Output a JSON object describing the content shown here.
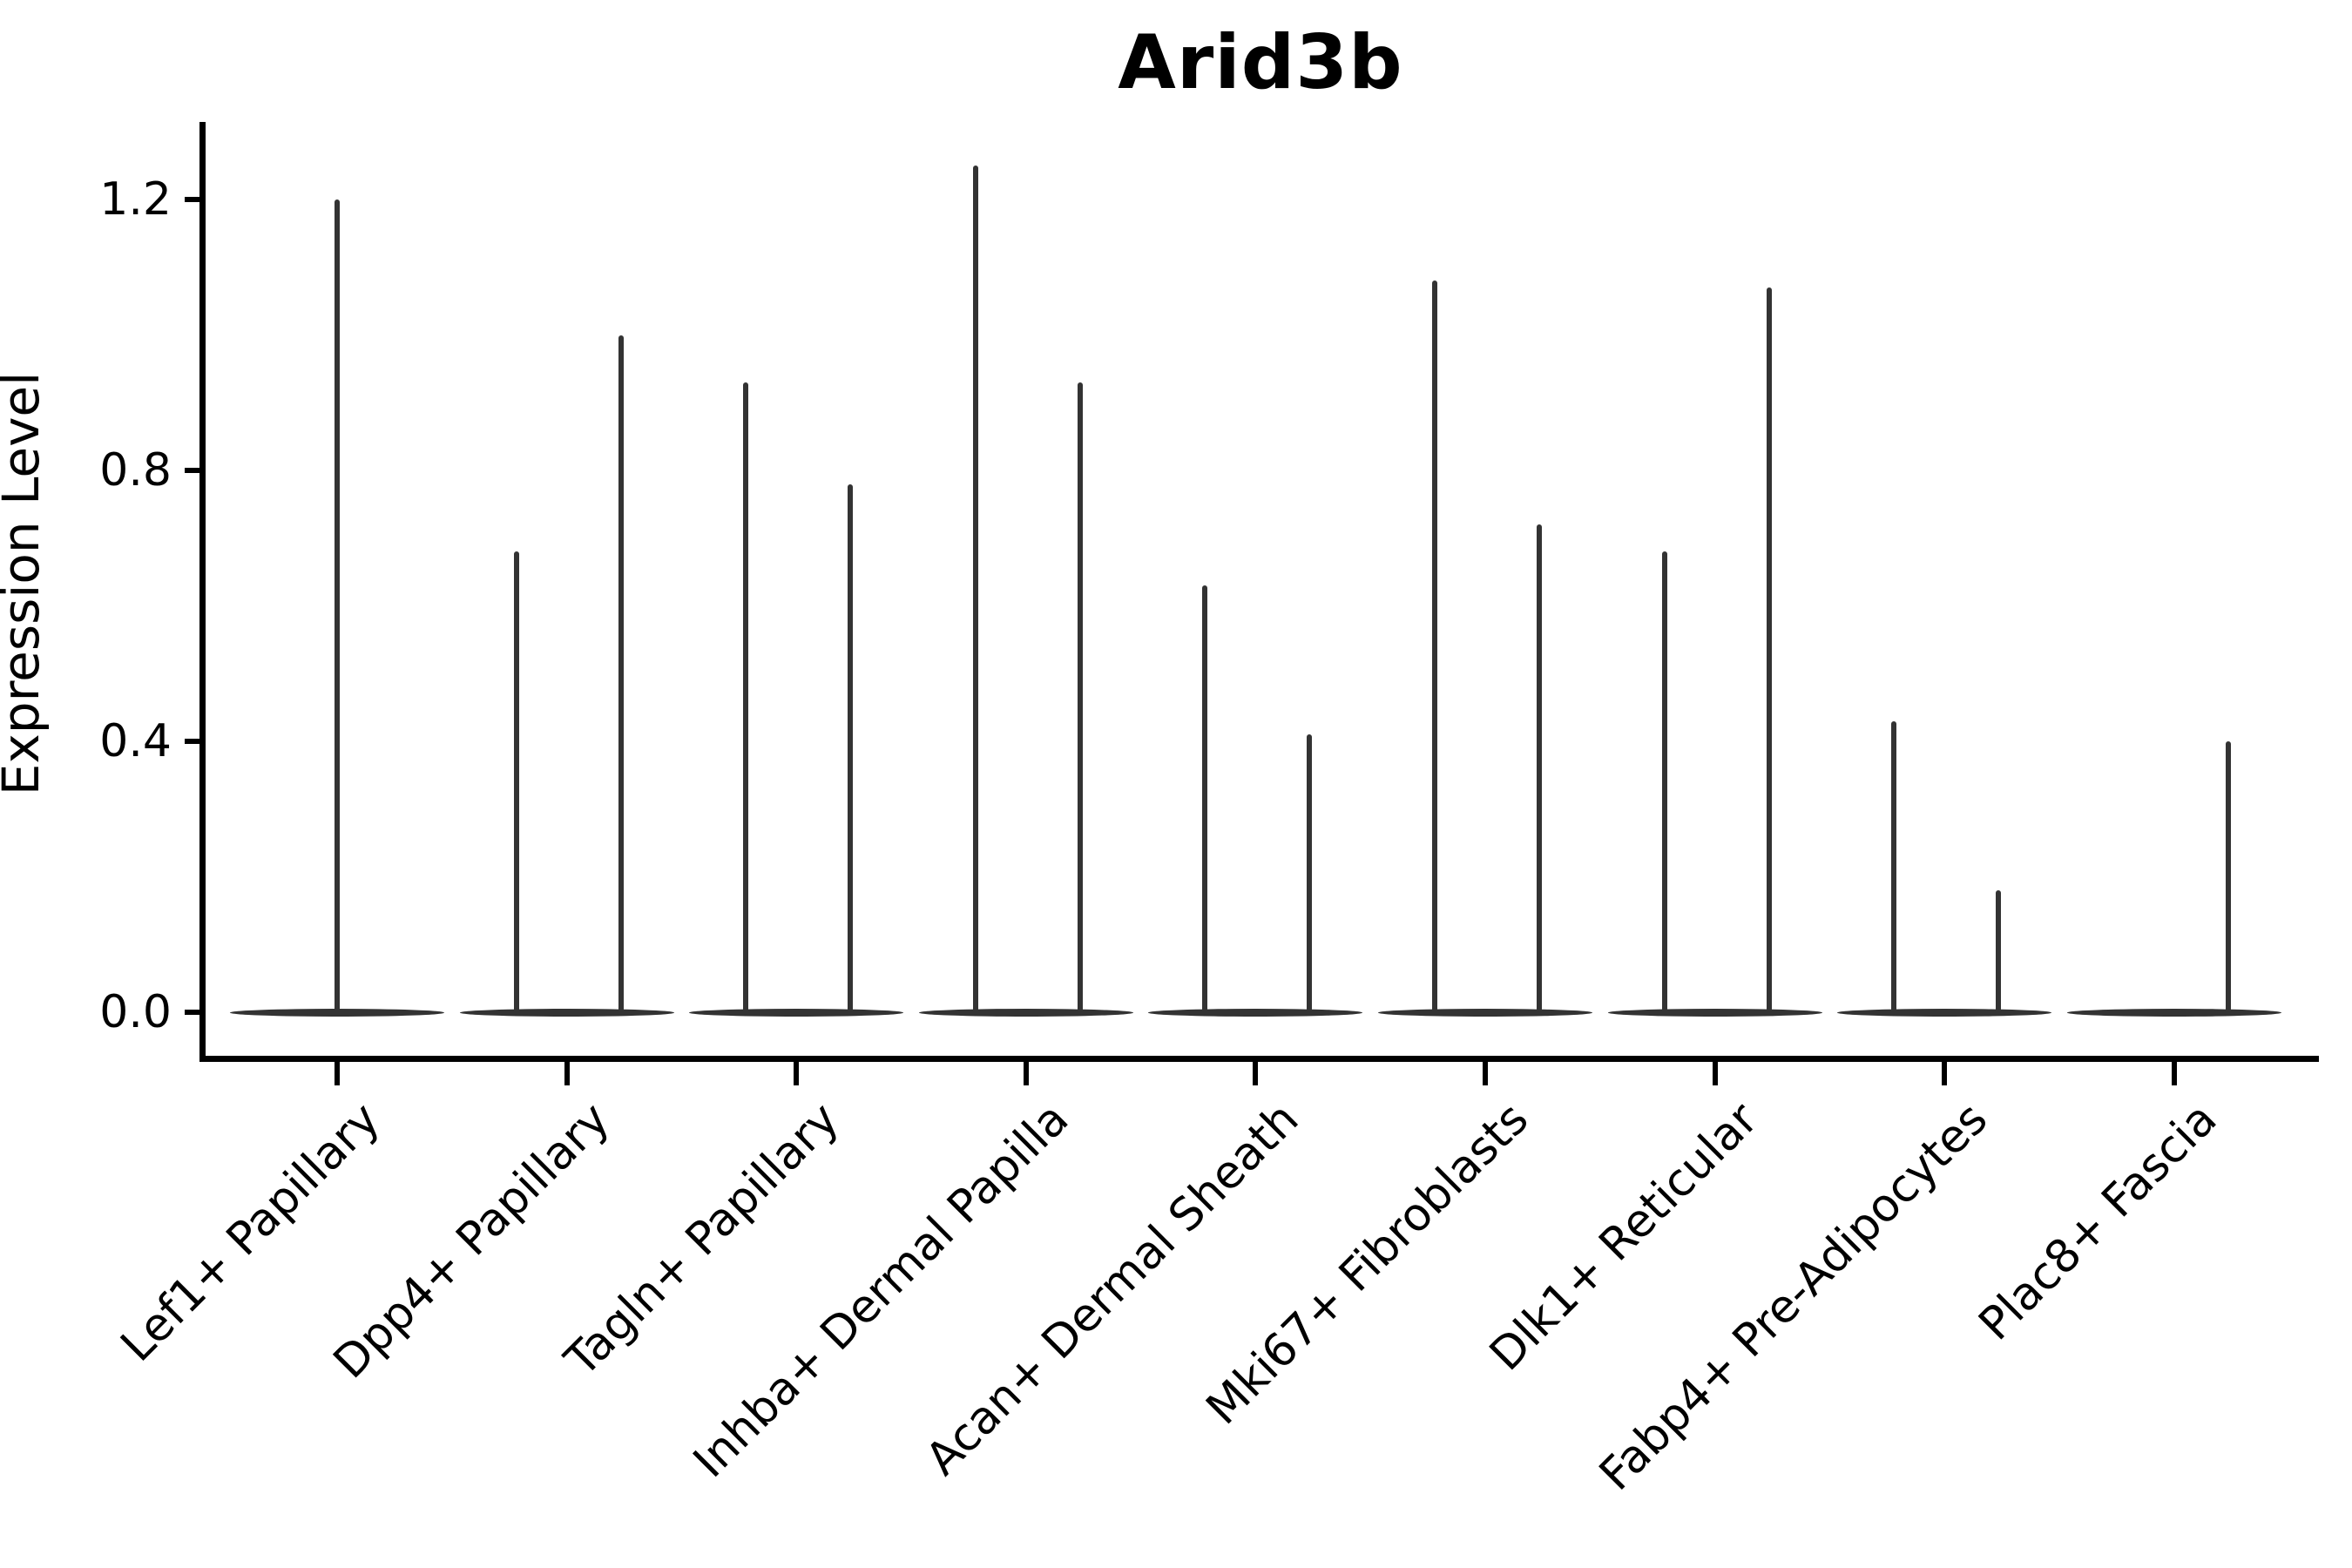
{
  "figure": {
    "title": "Arid3b",
    "background_color": "#ffffff",
    "axis_color": "#000000",
    "violin_color": "#333333"
  },
  "chart_data": {
    "type": "violin",
    "title": "Arid3b",
    "xlabel": "",
    "ylabel": "Expression Level",
    "ylim": [
      0,
      1.3
    ],
    "yticks": [
      0.0,
      0.4,
      0.8,
      1.2
    ],
    "ytick_labels": [
      "0.0",
      "0.4",
      "0.8",
      "1.2"
    ],
    "grid": false,
    "legend": "none",
    "categories": [
      "Lef1+ Papillary",
      "Dpp4+ Papillary",
      "Tagln+ Papillary",
      "Inhba+ Dermal Papilla",
      "Acan+ Dermal Sheath",
      "Mki67+ Fibroblasts",
      "Dlk1+ Reticular",
      "Fabp4+ Pre-Adipocytes",
      "Plac8+ Fascia"
    ],
    "violins": [
      {
        "category": "Lef1+ Papillary",
        "spikes": [
          {
            "position": "center",
            "max": 1.2
          }
        ]
      },
      {
        "category": "Dpp4+ Papillary",
        "spikes": [
          {
            "position": "left",
            "max": 0.68
          },
          {
            "position": "right",
            "max": 1.0
          }
        ]
      },
      {
        "category": "Tagln+ Papillary",
        "spikes": [
          {
            "position": "left",
            "max": 0.93
          },
          {
            "position": "right",
            "max": 0.78
          }
        ]
      },
      {
        "category": "Inhba+ Dermal Papilla",
        "spikes": [
          {
            "position": "left",
            "max": 1.25
          },
          {
            "position": "right",
            "max": 0.93
          }
        ]
      },
      {
        "category": "Acan+ Dermal Sheath",
        "spikes": [
          {
            "position": "left",
            "max": 0.63
          },
          {
            "position": "right",
            "max": 0.41
          }
        ]
      },
      {
        "category": "Mki67+ Fibroblasts",
        "spikes": [
          {
            "position": "left",
            "max": 1.08
          },
          {
            "position": "right",
            "max": 0.72
          }
        ]
      },
      {
        "category": "Dlk1+ Reticular",
        "spikes": [
          {
            "position": "left",
            "max": 0.68
          },
          {
            "position": "right",
            "max": 1.07
          }
        ]
      },
      {
        "category": "Fabp4+ Pre-Adipocytes",
        "spikes": [
          {
            "position": "left",
            "max": 0.43
          },
          {
            "position": "right",
            "max": 0.18
          }
        ]
      },
      {
        "category": "Plac8+ Fascia",
        "spikes": [
          {
            "position": "right",
            "max": 0.4
          }
        ]
      }
    ],
    "baseline_value": 0.0
  }
}
